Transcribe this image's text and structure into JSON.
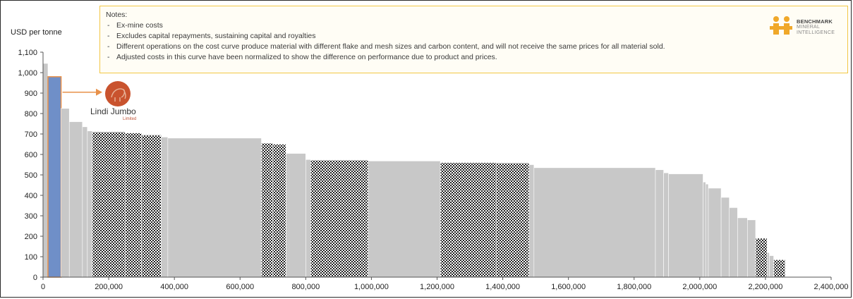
{
  "chart_data": {
    "type": "bar",
    "subtype": "cost-curve",
    "ylabel": "USD per tonne",
    "ylim": [
      0,
      1100
    ],
    "yticks": [
      "0",
      "100",
      "200",
      "300",
      "400",
      "500",
      "600",
      "700",
      "800",
      "900",
      "1,000",
      "1,100"
    ],
    "xlim": [
      0,
      2400000
    ],
    "xticks": [
      "0",
      "200,000",
      "400,000",
      "600,000",
      "800,000",
      "1,000,000",
      "1,200,000",
      "1,400,000",
      "1,600,000",
      "1,800,000",
      "2,000,000",
      "2,200,000",
      "2,400,000"
    ],
    "grid": false,
    "colors": {
      "default": "#c8c8c8",
      "highlight": "#6f8fc8",
      "highlight_border": "#e8914a",
      "hatched": "#222222"
    },
    "bars": [
      {
        "x0": 0,
        "x1": 15000,
        "value": 1045,
        "style": "default"
      },
      {
        "x0": 15000,
        "x1": 55000,
        "value": 980,
        "style": "highlight",
        "label": "Lindi Jumbo"
      },
      {
        "x0": 55000,
        "x1": 80000,
        "value": 825,
        "style": "default"
      },
      {
        "x0": 80000,
        "x1": 120000,
        "value": 760,
        "style": "default"
      },
      {
        "x0": 120000,
        "x1": 135000,
        "value": 735,
        "style": "default"
      },
      {
        "x0": 135000,
        "x1": 150000,
        "value": 715,
        "style": "default"
      },
      {
        "x0": 150000,
        "x1": 250000,
        "value": 710,
        "style": "hatched"
      },
      {
        "x0": 250000,
        "x1": 300000,
        "value": 705,
        "style": "hatched"
      },
      {
        "x0": 300000,
        "x1": 360000,
        "value": 695,
        "style": "hatched"
      },
      {
        "x0": 360000,
        "x1": 380000,
        "value": 685,
        "style": "default"
      },
      {
        "x0": 380000,
        "x1": 665000,
        "value": 680,
        "style": "default"
      },
      {
        "x0": 665000,
        "x1": 700000,
        "value": 655,
        "style": "hatched"
      },
      {
        "x0": 700000,
        "x1": 740000,
        "value": 650,
        "style": "hatched"
      },
      {
        "x0": 740000,
        "x1": 800000,
        "value": 605,
        "style": "default"
      },
      {
        "x0": 800000,
        "x1": 815000,
        "value": 575,
        "style": "default"
      },
      {
        "x0": 815000,
        "x1": 990000,
        "value": 572,
        "style": "hatched"
      },
      {
        "x0": 990000,
        "x1": 1210000,
        "value": 568,
        "style": "default"
      },
      {
        "x0": 1210000,
        "x1": 1380000,
        "value": 560,
        "style": "hatched"
      },
      {
        "x0": 1380000,
        "x1": 1480000,
        "value": 558,
        "style": "hatched"
      },
      {
        "x0": 1480000,
        "x1": 1495000,
        "value": 550,
        "style": "default"
      },
      {
        "x0": 1495000,
        "x1": 1865000,
        "value": 535,
        "style": "default"
      },
      {
        "x0": 1865000,
        "x1": 1890000,
        "value": 525,
        "style": "default"
      },
      {
        "x0": 1890000,
        "x1": 1905000,
        "value": 510,
        "style": "default"
      },
      {
        "x0": 1905000,
        "x1": 2010000,
        "value": 505,
        "style": "default"
      },
      {
        "x0": 2010000,
        "x1": 2018000,
        "value": 465,
        "style": "default"
      },
      {
        "x0": 2018000,
        "x1": 2026000,
        "value": 455,
        "style": "default"
      },
      {
        "x0": 2026000,
        "x1": 2065000,
        "value": 435,
        "style": "default"
      },
      {
        "x0": 2065000,
        "x1": 2090000,
        "value": 390,
        "style": "default"
      },
      {
        "x0": 2090000,
        "x1": 2115000,
        "value": 340,
        "style": "default"
      },
      {
        "x0": 2115000,
        "x1": 2145000,
        "value": 290,
        "style": "default"
      },
      {
        "x0": 2145000,
        "x1": 2170000,
        "value": 280,
        "style": "default"
      },
      {
        "x0": 2170000,
        "x1": 2205000,
        "value": 190,
        "style": "hatched"
      },
      {
        "x0": 2205000,
        "x1": 2212000,
        "value": 120,
        "style": "default"
      },
      {
        "x0": 2212000,
        "x1": 2225000,
        "value": 105,
        "style": "default"
      },
      {
        "x0": 2225000,
        "x1": 2260000,
        "value": 85,
        "style": "hatched"
      }
    ]
  },
  "notes": {
    "title": "Notes:",
    "items": [
      "Ex-mine costs",
      "Excludes capital repayments, sustaining capital and royalties",
      "Different operations on the cost curve produce material with different flake and mesh sizes and carbon content, and will not receive the same prices for all material sold.",
      "Adjusted costs in this curve have been normalized to show the difference on performance due to product and prices."
    ]
  },
  "brand": {
    "line1": "BENCHMARK",
    "line2": "MINERAL",
    "line3": "INTELLIGENCE",
    "color": "#f0a82a"
  },
  "callout": {
    "name": "Lindi Jumbo",
    "subtitle": "Limited",
    "color": "#e8914a",
    "logo_color": "#c9532e"
  }
}
